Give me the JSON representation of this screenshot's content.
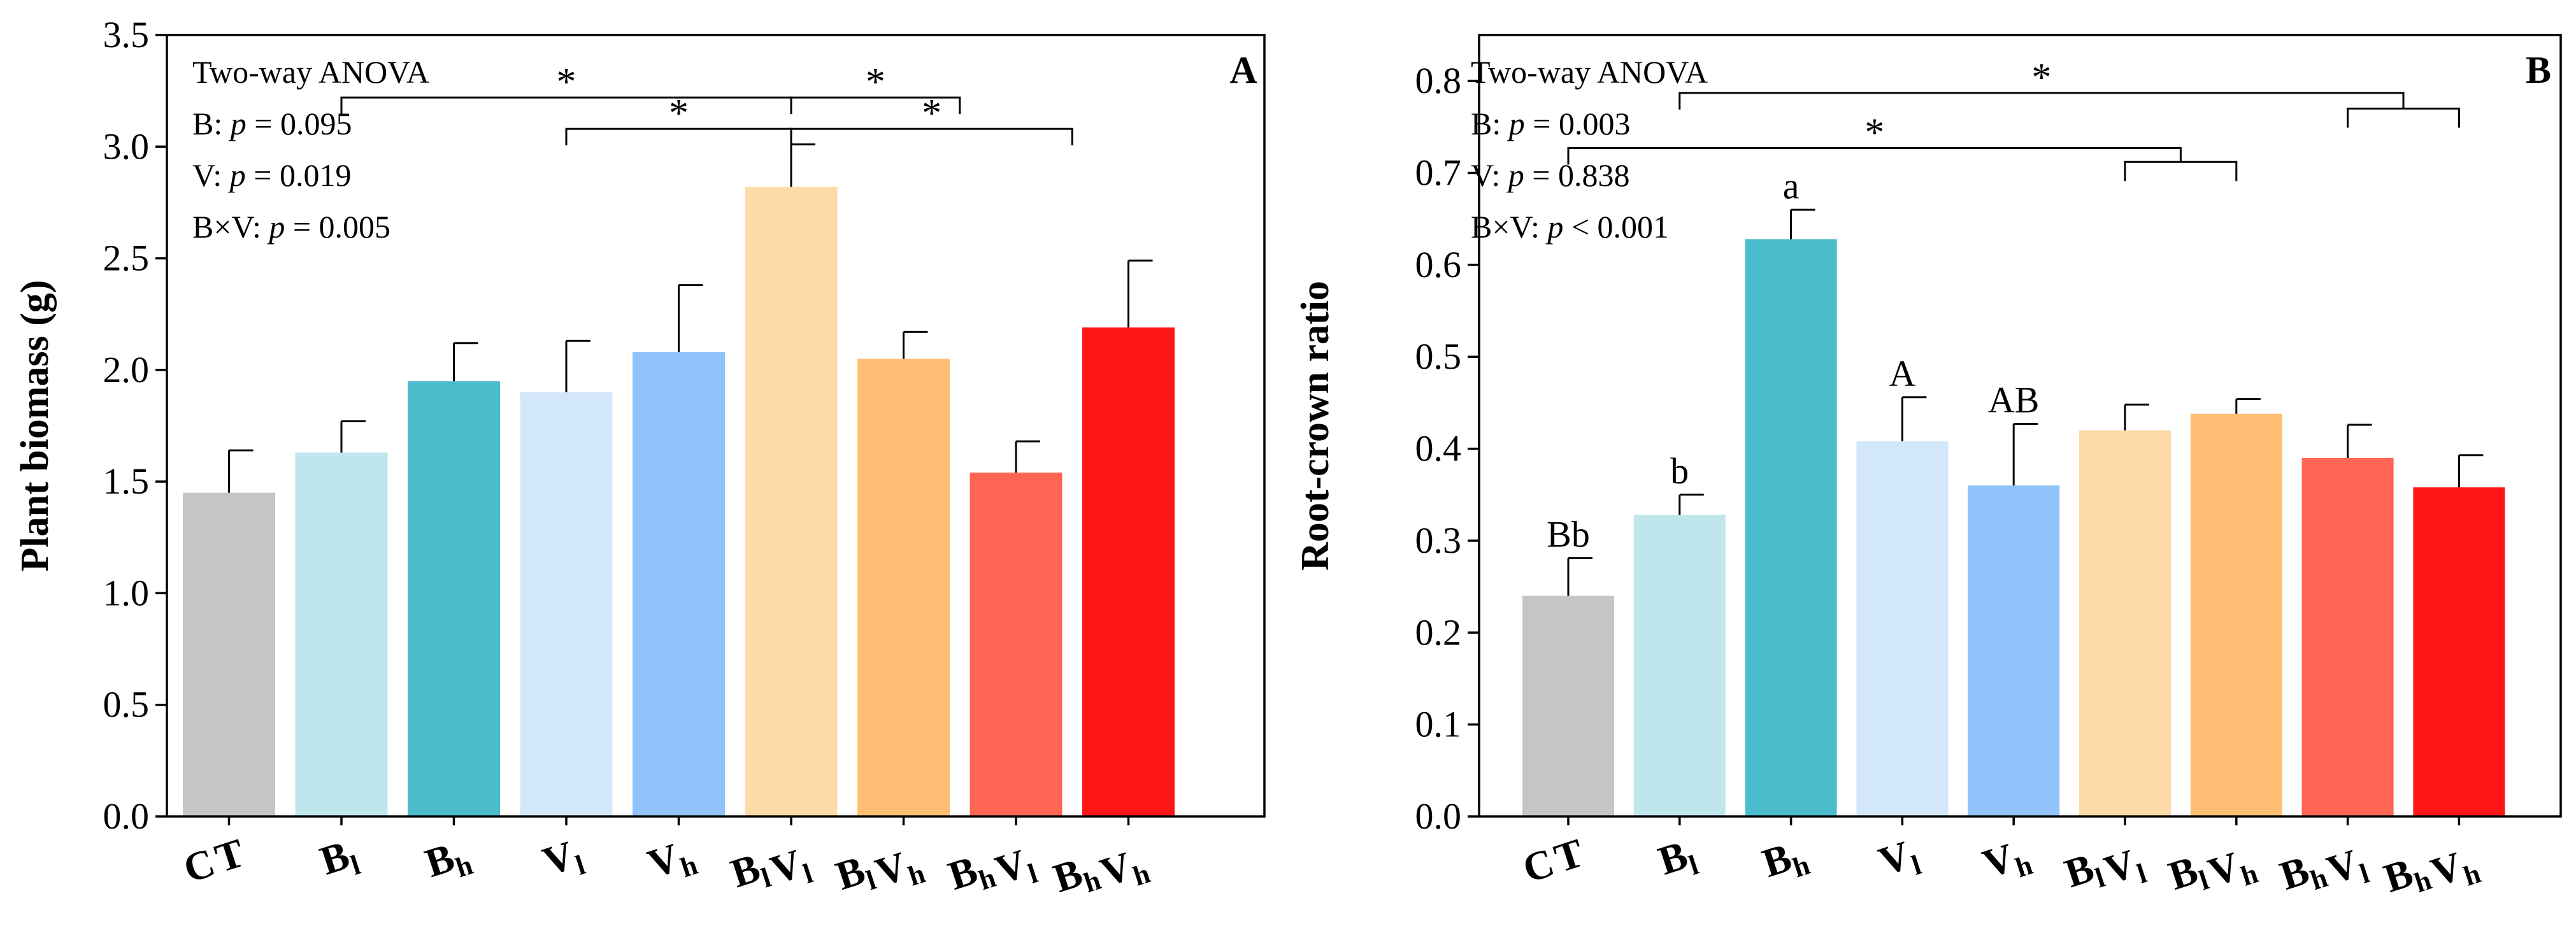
{
  "chart_data": [
    {
      "id": "A",
      "type": "bar",
      "panel_letter": "A",
      "ylabel": "Plant biomass (g)",
      "ylim": [
        0,
        3.5
      ],
      "yticks": [
        "0.0",
        "0.5",
        "1.0",
        "1.5",
        "2.0",
        "2.5",
        "3.0",
        "3.5"
      ],
      "categories": [
        {
          "main": "CT",
          "sub": [
            ""
          ]
        },
        {
          "main": "B",
          "sub": [
            "l"
          ]
        },
        {
          "main": "B",
          "sub": [
            "h"
          ]
        },
        {
          "main": "V",
          "sub": [
            "l"
          ]
        },
        {
          "main": "V",
          "sub": [
            "h"
          ]
        },
        {
          "main": "BV",
          "sub": [
            "l",
            "l"
          ]
        },
        {
          "main": "BV",
          "sub": [
            "l",
            "h"
          ]
        },
        {
          "main": "BV",
          "sub": [
            "h",
            "l"
          ]
        },
        {
          "main": "BV",
          "sub": [
            "h",
            "h"
          ]
        }
      ],
      "values": [
        1.45,
        1.63,
        1.95,
        1.9,
        2.08,
        2.82,
        2.05,
        1.54,
        2.19
      ],
      "errors": [
        0.19,
        0.14,
        0.17,
        0.23,
        0.3,
        0.19,
        0.12,
        0.14,
        0.3
      ],
      "colors": [
        "#c5c5c5",
        "#bfe6ed",
        "#4bbccc",
        "#d3e7fb",
        "#8fc3fa",
        "#fddba8",
        "#ffbe74",
        "#ff6553",
        "#fe1515"
      ],
      "bar_labels": [
        "",
        "",
        "",
        "",
        "",
        "",
        "",
        "",
        ""
      ],
      "anova": {
        "title": "Two-way ANOVA",
        "lines": [
          {
            "factor": "B:",
            "p": "p",
            "rest": " = 0.095"
          },
          {
            "factor": "V:",
            "p": "p",
            "rest": " = 0.019"
          },
          {
            "factor": "B×V:",
            "p": "p",
            "rest": " = 0.005"
          }
        ]
      },
      "significance": [
        {
          "type": "bar-bar",
          "from": 1,
          "to": 5,
          "level": 3.22,
          "label": "*"
        },
        {
          "type": "bar-bar",
          "from": 5,
          "to": 6.5,
          "level": 3.22,
          "label": "*"
        },
        {
          "type": "bar-bar",
          "from": 3,
          "to": 5,
          "level": 3.08,
          "label": "*"
        },
        {
          "type": "bar-bar",
          "from": 5,
          "to": 7.5,
          "level": 3.08,
          "label": "*"
        }
      ],
      "groups": []
    },
    {
      "id": "B",
      "type": "bar",
      "panel_letter": "B",
      "ylabel": "Root-crown ratio",
      "ylim": [
        0,
        0.85
      ],
      "yticks": [
        "0.0",
        "0.1",
        "0.2",
        "0.3",
        "0.4",
        "0.5",
        "0.6",
        "0.7",
        "0.8"
      ],
      "categories": [
        {
          "main": "CT",
          "sub": [
            ""
          ]
        },
        {
          "main": "B",
          "sub": [
            "l"
          ]
        },
        {
          "main": "B",
          "sub": [
            "h"
          ]
        },
        {
          "main": "V",
          "sub": [
            "l"
          ]
        },
        {
          "main": "V",
          "sub": [
            "h"
          ]
        },
        {
          "main": "BV",
          "sub": [
            "l",
            "l"
          ]
        },
        {
          "main": "BV",
          "sub": [
            "l",
            "h"
          ]
        },
        {
          "main": "BV",
          "sub": [
            "h",
            "l"
          ]
        },
        {
          "main": "BV",
          "sub": [
            "h",
            "h"
          ]
        }
      ],
      "values": [
        0.24,
        0.328,
        0.628,
        0.408,
        0.36,
        0.42,
        0.438,
        0.39,
        0.358
      ],
      "errors": [
        0.041,
        0.022,
        0.032,
        0.048,
        0.067,
        0.028,
        0.016,
        0.036,
        0.035
      ],
      "colors": [
        "#c5c5c5",
        "#bfe6ed",
        "#4bbccc",
        "#d3e7fb",
        "#8fc3fa",
        "#fddba8",
        "#ffbe74",
        "#ff6553",
        "#fe1515"
      ],
      "bar_labels": [
        "Bb",
        "b",
        "a",
        "A",
        "AB",
        "",
        "",
        "",
        ""
      ],
      "anova": {
        "title": "Two-way ANOVA",
        "lines": [
          {
            "factor": "B:",
            "p": "p",
            "rest": " = 0.003"
          },
          {
            "factor": "V:",
            "p": "p",
            "rest": " = 0.838"
          },
          {
            "factor": "B×V:",
            "p": "p",
            "rest": " < 0.001"
          }
        ]
      },
      "significance": [
        {
          "type": "bar-group",
          "from": 1,
          "group": 1,
          "level": 0.787,
          "label": "*"
        },
        {
          "type": "bar-group",
          "from": 0,
          "group": 0,
          "level": 0.727,
          "label": "*"
        }
      ],
      "groups": [
        {
          "from": 5,
          "to": 6,
          "level": 0.712
        },
        {
          "from": 7,
          "to": 8,
          "level": 0.77
        }
      ]
    }
  ]
}
